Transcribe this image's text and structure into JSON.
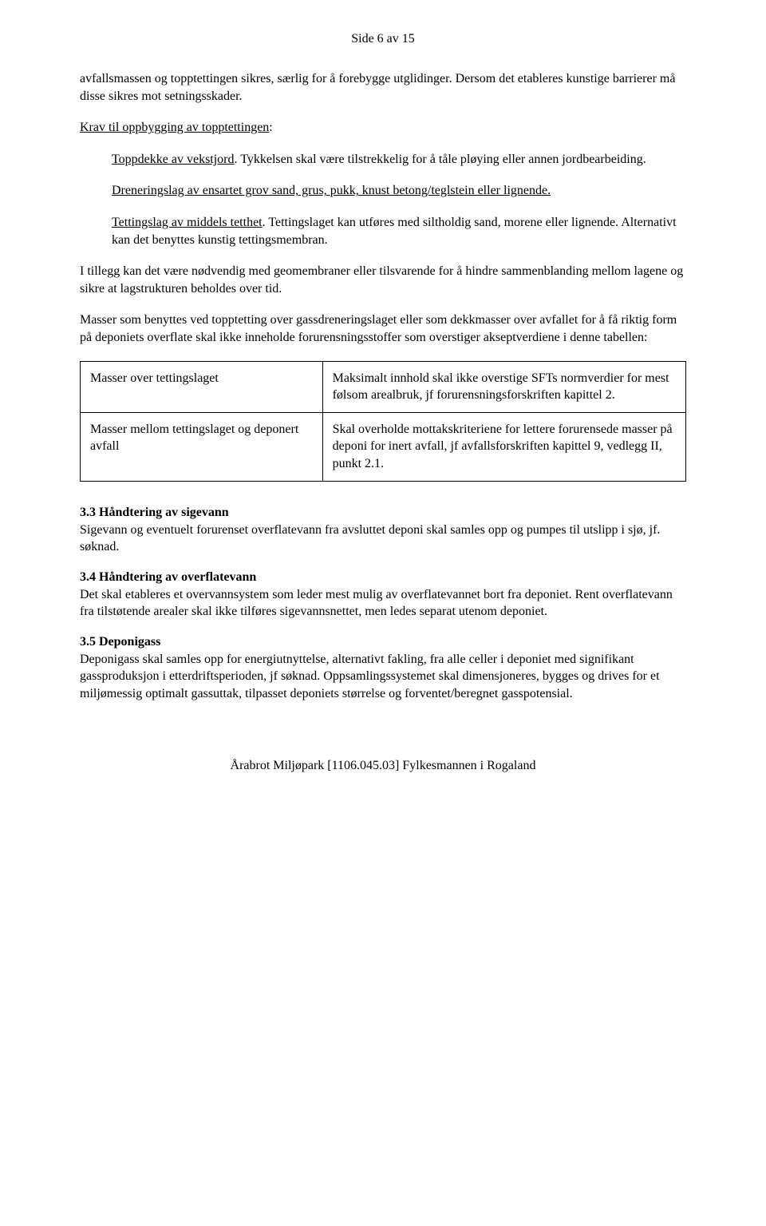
{
  "header": {
    "page_label": "Side 6 av 15"
  },
  "body": {
    "p1": "avfallsmassen og topptettingen sikres, særlig for å forebygge utglidinger. Dersom det etableres kunstige barrierer må disse sikres mot setningsskader.",
    "underline_krav": "Krav til oppbygging av topptettingen",
    "colon1": ":",
    "u_toppdekke": "Toppdekke av vekstjord",
    "toppdekke_rest": ". Tykkelsen skal være tilstrekkelig for å tåle pløying eller annen jordbearbeiding.",
    "u_drenering": "Dreneringslag av ensartet grov sand, grus, pukk, knust betong/teglstein eller lignende.",
    "u_tettingslag": "Tettingslag av middels tetthet",
    "tettingslag_rest": ". Tettingslaget kan utføres med siltholdig sand, morene eller lignende. Alternativt kan det benyttes kunstig tettingsmembran.",
    "p_i_tillegg": "I tillegg kan det være nødvendig med geomembraner eller tilsvarende for å hindre sammenblanding mellom lagene og sikre at lagstrukturen beholdes over tid.",
    "p_masser": "Masser som benyttes ved topptetting over gassdreneringslaget eller som dekkmasser over avfallet for å få riktig form på deponiets overflate skal ikke inneholde forurensningsstoffer som overstiger akseptverdiene i denne tabellen:"
  },
  "table": {
    "rows": [
      {
        "left": "Masser over tettingslaget",
        "right": "Maksimalt innhold skal ikke overstige SFTs normverdier for mest følsom arealbruk, jf forurensningsforskriften kapittel 2."
      },
      {
        "left": "Masser mellom tettingslaget og deponert avfall",
        "right": "Skal overholde mottakskriteriene for lettere forurensede masser på deponi for inert avfall, jf avfallsforskriften kapittel 9, vedlegg II, punkt 2.1."
      }
    ]
  },
  "sections": {
    "s33_title": "3.3  Håndtering av sigevann",
    "s33_body": "Sigevann og eventuelt forurenset overflatevann fra avsluttet deponi skal samles opp og pumpes til utslipp i sjø, jf. søknad.",
    "s34_title": "3.4  Håndtering av overflatevann",
    "s34_body": "Det skal etableres et overvannsystem som leder mest mulig av overflatevannet bort fra deponiet. Rent overflatevann fra tilstøtende arealer skal ikke tilføres sigevannsnettet, men ledes separat utenom deponiet.",
    "s35_title": "3.5  Deponigass",
    "s35_body": "Deponigass skal samles opp for energiutnyttelse, alternativt fakling, fra alle celler i deponiet med signifikant gassproduksjon i etterdriftsperioden, jf søknad. Oppsamlingssystemet skal dimensjoneres, bygges og drives for et miljømessig optimalt gassuttak, tilpasset deponiets størrelse og forventet/beregnet gasspotensial."
  },
  "footer": {
    "text": "Årabrot Miljøpark [1106.045.03] Fylkesmannen i Rogaland"
  }
}
